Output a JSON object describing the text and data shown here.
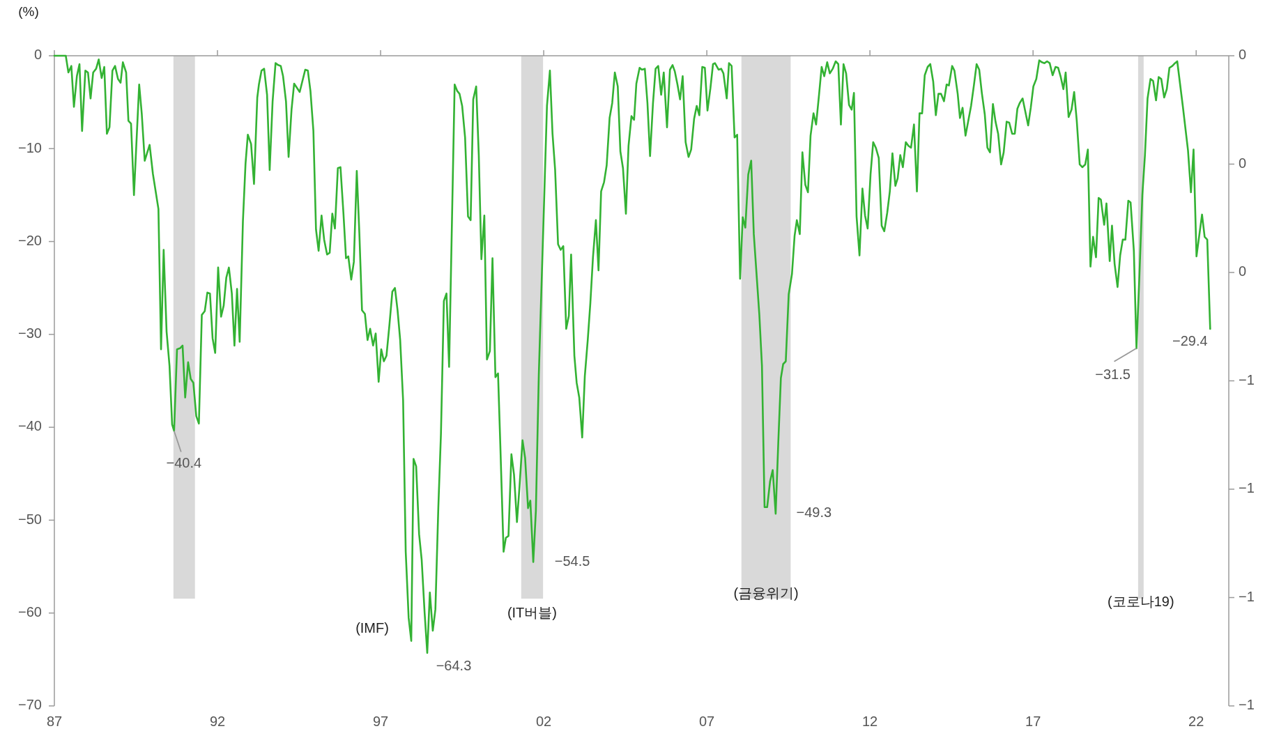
{
  "chart_data": {
    "type": "line",
    "ylabel": "(%)",
    "color": "#33b233",
    "x": [
      1987,
      1987.35,
      1987.43,
      1987.52,
      1987.6,
      1987.69,
      1987.77,
      1987.85,
      1987.95,
      1988.03,
      1988.11,
      1988.19,
      1988.28,
      1988.36,
      1988.45,
      1988.53,
      1988.61,
      1988.69,
      1988.78,
      1988.86,
      1988.95,
      1989.03,
      1989.1,
      1989.2,
      1989.27,
      1989.35,
      1989.44,
      1989.6,
      1989.68,
      1989.77,
      1989.92,
      1990.02,
      1990.19,
      1990.27,
      1990.35,
      1990.44,
      1990.53,
      1990.61,
      1990.67,
      1990.76,
      1990.85,
      1990.93,
      1991.01,
      1991.1,
      1991.18,
      1991.26,
      1991.35,
      1991.43,
      1991.52,
      1991.61,
      1991.69,
      1991.77,
      1991.85,
      1991.93,
      1992.02,
      1992.11,
      1992.19,
      1992.27,
      1992.35,
      1992.44,
      1992.52,
      1992.6,
      1992.68,
      1992.78,
      1992.86,
      1992.93,
      1993.03,
      1993.12,
      1993.22,
      1993.27,
      1993.35,
      1993.43,
      1993.52,
      1993.6,
      1993.69,
      1993.78,
      1993.86,
      1993.94,
      1994.01,
      1994.1,
      1994.18,
      1994.27,
      1994.35,
      1994.52,
      1994.69,
      1994.77,
      1994.85,
      1994.94,
      1995.02,
      1995.1,
      1995.19,
      1995.27,
      1995.36,
      1995.44,
      1995.52,
      1995.6,
      1995.69,
      1995.77,
      1995.86,
      1995.94,
      1996.01,
      1996.1,
      1996.18,
      1996.27,
      1996.35,
      1996.43,
      1996.52,
      1996.6,
      1996.68,
      1996.77,
      1996.85,
      1996.94,
      1997.02,
      1997.1,
      1997.18,
      1997.27,
      1997.36,
      1997.44,
      1997.52,
      1997.6,
      1997.69,
      1997.77,
      1997.86,
      1997.94,
      1998.01,
      1998.09,
      1998.18,
      1998.26,
      1998.35,
      1998.43,
      1998.51,
      1998.6,
      1998.68,
      1998.77,
      1998.85,
      1998.94,
      1999.02,
      1999.1,
      1999.27,
      1999.35,
      1999.42,
      1999.5,
      1999.59,
      1999.68,
      1999.76,
      1999.84,
      1999.93,
      2000.01,
      2000.09,
      2000.18,
      2000.26,
      2000.35,
      2000.43,
      2000.52,
      2000.6,
      2000.67,
      2000.77,
      2000.84,
      2000.92,
      2001.01,
      2001.09,
      2001.18,
      2001.26,
      2001.35,
      2001.43,
      2001.52,
      2001.59,
      2001.68,
      2001.76,
      2001.85,
      2002.01,
      2002.1,
      2002.19,
      2002.27,
      2002.35,
      2002.44,
      2002.52,
      2002.6,
      2002.69,
      2002.77,
      2002.84,
      2002.94,
      2003.01,
      2003.09,
      2003.18,
      2003.26,
      2003.35,
      2003.43,
      2003.51,
      2003.6,
      2003.68,
      2003.76,
      2003.85,
      2003.93,
      2004.02,
      2004.1,
      2004.18,
      2004.27,
      2004.35,
      2004.43,
      2004.52,
      2004.6,
      2004.69,
      2004.77,
      2004.84,
      2004.94,
      2005.01,
      2005.1,
      2005.18,
      2005.26,
      2005.35,
      2005.43,
      2005.51,
      2005.6,
      2005.68,
      2005.78,
      2005.87,
      2005.95,
      2006.02,
      2006.1,
      2006.18,
      2006.26,
      2006.35,
      2006.44,
      2006.52,
      2006.61,
      2006.69,
      2006.77,
      2006.86,
      2006.94,
      2007.02,
      2007.11,
      2007.19,
      2007.25,
      2007.36,
      2007.44,
      2007.51,
      2007.61,
      2007.68,
      2007.76,
      2007.85,
      2007.93,
      2008.02,
      2008.1,
      2008.18,
      2008.27,
      2008.36,
      2008.44,
      2008.61,
      2008.69,
      2008.77,
      2008.85,
      2008.94,
      2009.02,
      2009.11,
      2009.19,
      2009.27,
      2009.34,
      2009.42,
      2009.51,
      2009.61,
      2009.69,
      2009.76,
      2009.85,
      2009.93,
      2010.02,
      2010.1,
      2010.18,
      2010.27,
      2010.35,
      2010.44,
      2010.52,
      2010.6,
      2010.69,
      2010.77,
      2010.86,
      2010.95,
      2011.03,
      2011.11,
      2011.19,
      2011.27,
      2011.36,
      2011.44,
      2011.51,
      2011.59,
      2011.68,
      2011.77,
      2011.85,
      2011.93,
      2012.02,
      2012.1,
      2012.18,
      2012.27,
      2012.36,
      2012.44,
      2012.53,
      2012.61,
      2012.69,
      2012.78,
      2012.85,
      2012.93,
      2013.01,
      2013.1,
      2013.18,
      2013.26,
      2013.35,
      2013.44,
      2013.52,
      2013.6,
      2013.68,
      2013.77,
      2013.85,
      2013.94,
      2014.02,
      2014.1,
      2014.18,
      2014.27,
      2014.35,
      2014.42,
      2014.52,
      2014.59,
      2014.69,
      2014.76,
      2014.84,
      2014.93,
      2015.1,
      2015.19,
      2015.27,
      2015.35,
      2015.43,
      2015.52,
      2015.6,
      2015.68,
      2015.77,
      2015.85,
      2015.93,
      2016.02,
      2016.1,
      2016.19,
      2016.27,
      2016.36,
      2016.44,
      2016.52,
      2016.59,
      2016.68,
      2016.78,
      2016.85,
      2016.93,
      2017.01,
      2017.1,
      2017.19,
      2017.27,
      2017.35,
      2017.43,
      2017.51,
      2017.6,
      2017.69,
      2017.77,
      2017.85,
      2017.93,
      2018.0,
      2018.09,
      2018.18,
      2018.26,
      2018.34,
      2018.43,
      2018.51,
      2018.6,
      2018.68,
      2018.76,
      2018.84,
      2018.93,
      2019.01,
      2019.08,
      2019.18,
      2019.25,
      2019.35,
      2019.42,
      2019.5,
      2019.59,
      2019.67,
      2019.75,
      2019.83,
      2019.92,
      2019.99,
      2020.09,
      2020.17,
      2020.26,
      2020.35,
      2020.43,
      2020.51,
      2020.6,
      2020.68,
      2020.77,
      2020.85,
      2020.93,
      2021.02,
      2021.1,
      2021.18,
      2021.27,
      2021.35,
      2021.42,
      2021.59,
      2021.75,
      2021.84,
      2021.92,
      2022.01,
      2022.18,
      2022.26,
      2022.34,
      2022.43
    ],
    "values": [
      0,
      0,
      -1.8,
      -1.1,
      -5.5,
      -2.2,
      -0.9,
      -8.1,
      -1.6,
      -1.8,
      -4.6,
      -1.8,
      -1.4,
      -0.4,
      -2.4,
      -1.2,
      -8.4,
      -7.7,
      -1.6,
      -1.1,
      -2.5,
      -2.9,
      -0.7,
      -1.8,
      -7.0,
      -7.3,
      -15.0,
      -3.1,
      -6.3,
      -11.3,
      -9.6,
      -12.7,
      -16.5,
      -31.6,
      -20.9,
      -29.7,
      -33.4,
      -39.7,
      -40.4,
      -31.6,
      -31.5,
      -31.2,
      -36.8,
      -33.0,
      -34.8,
      -35.2,
      -38.8,
      -39.6,
      -27.9,
      -27.5,
      -25.5,
      -25.6,
      -30.4,
      -32.0,
      -22.8,
      -28.1,
      -26.9,
      -23.9,
      -22.8,
      -25.6,
      -31.2,
      -25.1,
      -30.8,
      -17.8,
      -11.6,
      -8.5,
      -9.5,
      -13.8,
      -4.5,
      -3.1,
      -1.6,
      -1.4,
      -4.2,
      -12.3,
      -4.9,
      -0.8,
      -1.0,
      -1.1,
      -2.2,
      -4.9,
      -10.9,
      -5.8,
      -3.0,
      -3.9,
      -1.5,
      -1.6,
      -3.8,
      -8.1,
      -18.7,
      -21.0,
      -17.2,
      -19.8,
      -21.4,
      -21.2,
      -17.0,
      -18.6,
      -12.1,
      -12.0,
      -16.9,
      -21.8,
      -21.6,
      -24.1,
      -22.2,
      -12.4,
      -19.2,
      -27.4,
      -27.8,
      -30.6,
      -29.4,
      -31.2,
      -29.9,
      -35.1,
      -31.6,
      -32.9,
      -32.3,
      -29.0,
      -25.4,
      -25.0,
      -27.4,
      -30.6,
      -37.1,
      -53.4,
      -60.5,
      -63.0,
      -43.4,
      -44.2,
      -51.5,
      -54.3,
      -60.0,
      -64.3,
      -57.8,
      -61.9,
      -59.6,
      -48.6,
      -40.7,
      -26.4,
      -25.6,
      -33.5,
      -3.1,
      -3.8,
      -4.1,
      -5.4,
      -8.8,
      -17.3,
      -17.7,
      -4.7,
      -3.3,
      -10.7,
      -21.9,
      -17.2,
      -32.7,
      -31.8,
      -21.8,
      -34.6,
      -34.2,
      -41.9,
      -53.4,
      -51.9,
      -51.7,
      -42.9,
      -45.1,
      -50.2,
      -46.3,
      -41.4,
      -43.3,
      -48.7,
      -47.9,
      -54.5,
      -49.0,
      -34.3,
      -15.9,
      -5.4,
      -1.6,
      -8.4,
      -12.3,
      -20.3,
      -20.9,
      -20.5,
      -29.4,
      -28.0,
      -21.4,
      -32.3,
      -35.2,
      -36.8,
      -41.1,
      -34.5,
      -30.6,
      -26.6,
      -21.7,
      -17.7,
      -23.1,
      -14.6,
      -13.6,
      -11.8,
      -6.7,
      -5.1,
      -1.8,
      -3.3,
      -10.3,
      -12.1,
      -17.0,
      -9.7,
      -6.5,
      -6.9,
      -3.0,
      -1.3,
      -1.5,
      -1.4,
      -5.1,
      -10.8,
      -5.1,
      -1.4,
      -1.1,
      -4.2,
      -1.8,
      -7.7,
      -1.5,
      -1.0,
      -1.7,
      -3.1,
      -4.7,
      -2.2,
      -9.3,
      -10.9,
      -10.1,
      -6.8,
      -5.4,
      -6.4,
      -1.2,
      -1.3,
      -5.9,
      -3.5,
      -0.9,
      -0.8,
      -1.5,
      -1.4,
      -1.9,
      -4.6,
      -0.8,
      -1.1,
      -8.8,
      -8.5,
      -24.0,
      -17.4,
      -18.5,
      -12.8,
      -11.3,
      -19.2,
      -27.9,
      -33.4,
      -48.6,
      -48.6,
      -45.8,
      -44.6,
      -49.3,
      -41.7,
      -34.7,
      -33.2,
      -32.9,
      -25.7,
      -23.5,
      -19.4,
      -17.7,
      -19.2,
      -10.4,
      -13.9,
      -14.7,
      -8.6,
      -6.2,
      -7.4,
      -4.2,
      -1.2,
      -2.2,
      -0.7,
      -1.9,
      -1.4,
      -0.6,
      -0.9,
      -7.4,
      -0.9,
      -1.9,
      -5.3,
      -5.8,
      -4.0,
      -17.3,
      -21.5,
      -14.3,
      -17.2,
      -18.6,
      -12.7,
      -9.3,
      -9.9,
      -11.0,
      -18.3,
      -18.9,
      -16.9,
      -14.6,
      -10.5,
      -14.0,
      -13.2,
      -10.7,
      -12.0,
      -9.3,
      -9.7,
      -9.9,
      -7.4,
      -14.6,
      -6.2,
      -6.2,
      -2.1,
      -1.2,
      -0.9,
      -2.8,
      -6.4,
      -4.1,
      -4.1,
      -4.9,
      -3.1,
      -3.2,
      -1.1,
      -1.6,
      -4.1,
      -6.7,
      -5.6,
      -8.6,
      -5.4,
      -3.1,
      -0.9,
      -1.5,
      -4.0,
      -6.3,
      -9.9,
      -10.4,
      -5.2,
      -7.1,
      -8.4,
      -11.7,
      -10.4,
      -7.1,
      -7.2,
      -8.4,
      -8.4,
      -5.7,
      -5.1,
      -4.6,
      -6.3,
      -7.5,
      -5.6,
      -3.3,
      -2.5,
      -0.5,
      -0.7,
      -0.8,
      -0.6,
      -0.8,
      -2.1,
      -1.2,
      -1.3,
      -2.3,
      -3.6,
      -1.8,
      -6.6,
      -5.8,
      -3.9,
      -7.0,
      -11.7,
      -12.0,
      -11.7,
      -10.1,
      -22.7,
      -19.5,
      -21.7,
      -15.3,
      -15.5,
      -18.2,
      -15.9,
      -22.1,
      -18.3,
      -22.4,
      -24.9,
      -21.5,
      -19.8,
      -19.8,
      -15.6,
      -15.8,
      -21.0,
      -31.5,
      -23.7,
      -15.0,
      -10.7,
      -4.6,
      -2.5,
      -2.7,
      -4.8,
      -2.3,
      -2.5,
      -4.5,
      -3.6,
      -1.3,
      -1.1,
      -0.8,
      -0.6,
      -5.4,
      -10.2,
      -14.7,
      -10.1,
      -21.6,
      -17.1,
      -19.5,
      -19.8,
      -29.4
    ],
    "xlim": [
      1987,
      2023
    ],
    "ylim": [
      -70,
      0
    ],
    "xticks": [
      {
        "value": 1987,
        "label": "87"
      },
      {
        "value": 1992,
        "label": "92"
      },
      {
        "value": 1997,
        "label": "97"
      },
      {
        "value": 2002,
        "label": "02"
      },
      {
        "value": 2007,
        "label": "07"
      },
      {
        "value": 2012,
        "label": "12"
      },
      {
        "value": 2017,
        "label": "17"
      },
      {
        "value": 2022,
        "label": "22"
      }
    ],
    "yticks": [
      0,
      -10,
      -20,
      -30,
      -40,
      -50,
      -60,
      -70
    ],
    "bands": [
      {
        "axis": "x",
        "from": 1990.65,
        "to": 1991.31,
        "color": "#d9d9d9"
      },
      {
        "axis": "x",
        "from": 2001.31,
        "to": 2001.98,
        "label": "(IT버블)",
        "color": "#d9d9d9"
      },
      {
        "axis": "x",
        "from": 2008.06,
        "to": 2009.57,
        "label": "(금융위기)",
        "color": "#d9d9d9"
      },
      {
        "axis": "x",
        "from": 2020.22,
        "to": 2020.39,
        "label": "(코로나19)",
        "color": "#d9d9d9"
      }
    ],
    "annotations": [
      {
        "text": "−40.4",
        "x": 1990.67,
        "y": -40.4
      },
      {
        "text": "(IMF)",
        "x": 1997.94,
        "y": -63.0
      },
      {
        "text": "−64.3",
        "x": 1998.43,
        "y": -64.3
      },
      {
        "text": "−54.5",
        "x": 2001.68,
        "y": -54.5
      },
      {
        "text": "−49.3",
        "x": 2009.11,
        "y": -49.3
      },
      {
        "text": "−31.5",
        "x": 2020.17,
        "y": -31.5
      },
      {
        "text": "−29.4",
        "x": 2022.43,
        "y": -29.4
      },
      "0",
      "0",
      "0",
      "−1",
      "−1",
      "−1",
      "−1"
    ]
  }
}
